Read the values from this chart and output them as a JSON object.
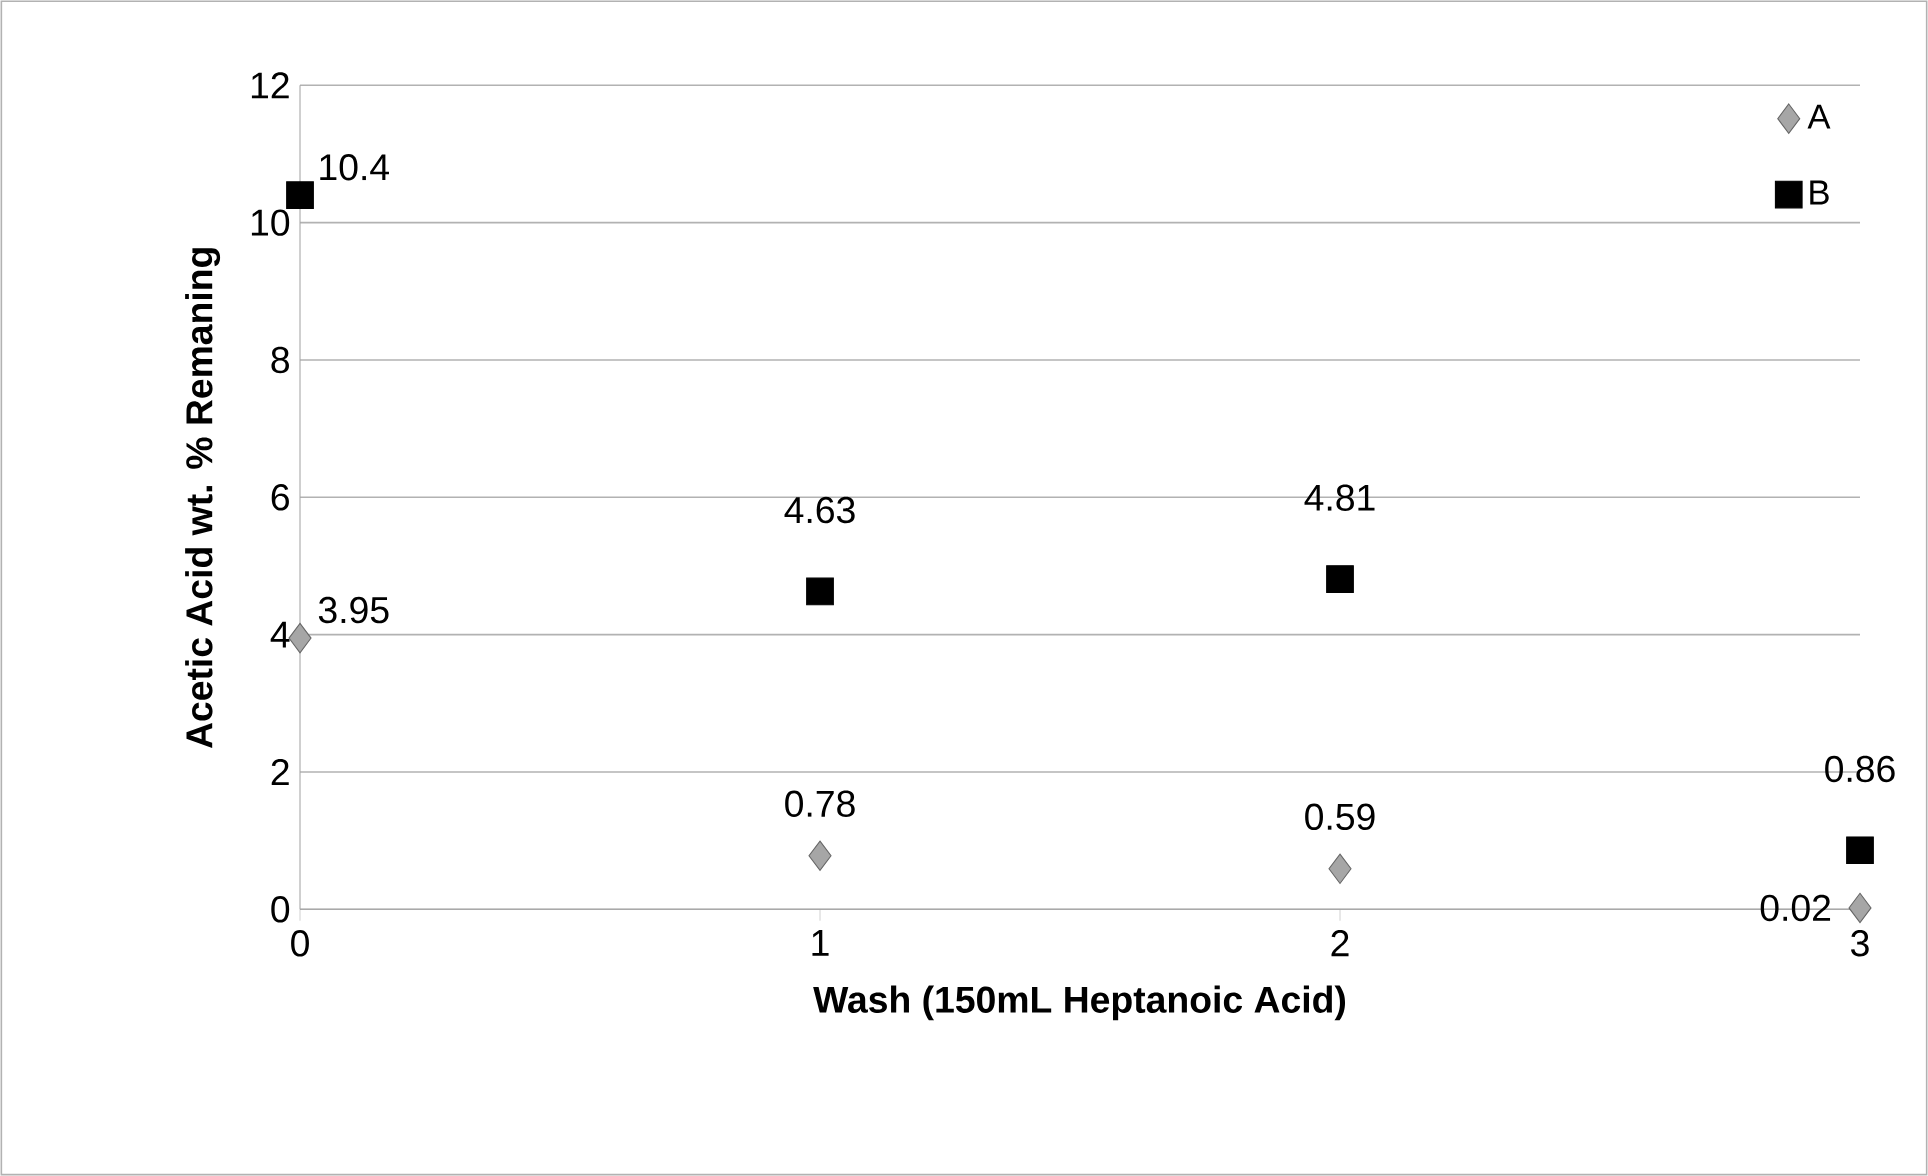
{
  "chart_data": {
    "type": "scatter",
    "xlabel": "Wash (150mL Heptanoic Acid)",
    "ylabel": "Acetic Acid wt. % Remaning",
    "x": [
      0,
      1,
      2,
      3
    ],
    "series": [
      {
        "name": "A",
        "color": "#a6a6a6",
        "marker": "diamond",
        "values": [
          3.95,
          0.78,
          0.59,
          0.02
        ]
      },
      {
        "name": "B",
        "color": "#000000",
        "marker": "square",
        "values": [
          10.4,
          4.63,
          4.81,
          0.86
        ]
      }
    ],
    "xlim": [
      0,
      3
    ],
    "xticks": [
      0,
      1,
      2,
      3
    ],
    "ylim": [
      0,
      12
    ],
    "yticks": [
      0,
      2,
      4,
      6,
      8,
      10,
      12
    ],
    "grid": "y",
    "legend": "top right",
    "data_labels": true
  }
}
